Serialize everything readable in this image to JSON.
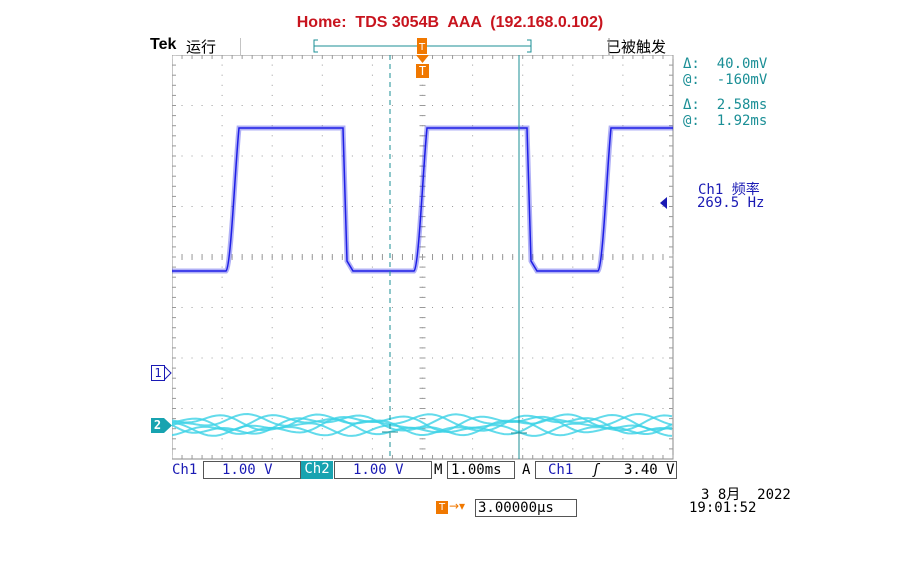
{
  "header": {
    "title": "Home:  TDS 3054B  AAA  (192.168.0.102)",
    "brand": "Tek",
    "run_state": "运行",
    "trigger_state": "已被触发"
  },
  "cursors": {
    "v_delta": "Δ:  40.0mV",
    "v_at": "@:  -160mV",
    "t_delta": "Δ:  2.58ms",
    "t_at": "@:  1.92ms"
  },
  "measurement": {
    "label": "Ch1 频率",
    "value": "269.5 Hz"
  },
  "channel_markers": {
    "ch1": "1",
    "ch2": "2",
    "trigger": "T"
  },
  "bottom": {
    "ch1_label": "Ch1",
    "ch1_scale": "1.00 V",
    "ch2_label": "Ch2",
    "ch2_scale": "1.00 V",
    "m_label": "M",
    "timebase": "1.00ms",
    "a_label": "A",
    "trig_source": "Ch1",
    "trig_slope": "ʃ",
    "trig_level": "3.40 V",
    "date": "3 8月  2022",
    "time": "19:01:52",
    "delay_value": "3.00000µs",
    "delay_icon": "T→▾"
  },
  "colors": {
    "ch1": "#1e1ee6",
    "ch2": "#3cd2e6",
    "cursor": "#1b8f96",
    "title": "#c8141e",
    "trigger_marker": "#f07800"
  }
}
